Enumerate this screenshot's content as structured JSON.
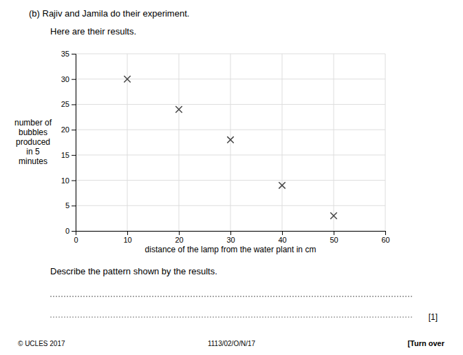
{
  "chart_data": {
    "type": "scatter",
    "title": "(b)  Rajiv and Jamila do their experiment.",
    "subtitle": "Here are their results.",
    "x_label": "distance of the lamp from the water plant in cm",
    "y_label": [
      "number of",
      "bubbles",
      "produced",
      "in 5",
      "minutes"
    ],
    "annotations": [
      "Describe the pattern shown by the results.",
      "[1]",
      "© UCLES 2017",
      "1113/02/O/N/17",
      "[Turn over"
    ],
    "x": [
      10,
      20,
      30,
      40,
      50
    ],
    "values": [
      30,
      24,
      18,
      9,
      3
    ],
    "xlim": [
      0,
      60
    ],
    "ylim": [
      0,
      35
    ],
    "xticks": [
      0,
      10,
      20,
      30,
      40,
      50,
      60
    ],
    "yticks": [
      0,
      5,
      10,
      15,
      20,
      25,
      30,
      35
    ],
    "grid": true,
    "marker": "x",
    "color": "#444444"
  }
}
